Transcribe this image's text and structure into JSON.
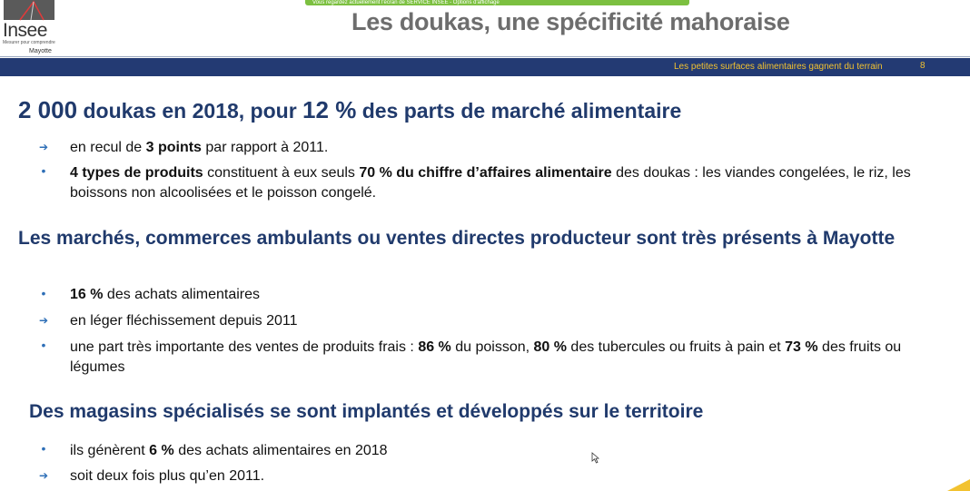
{
  "header": {
    "logo_word": "Insee",
    "logo_tagline": "Mesurer pour comprendre",
    "logo_region": "Mayotte",
    "share_banner": "Vous regardez actuellement l'écran de SERVICE INSEE - Options d'affichage",
    "title": "Les doukas, une spécificité mahoraise",
    "bar_subtitle": "Les petites surfaces alimentaires gagnent du terrain",
    "page_number": "8"
  },
  "sections": [
    {
      "heading_parts": [
        "2 000",
        " doukas en 2018, pour ",
        "12 %",
        " des parts de marché alimentaire"
      ],
      "items": [
        {
          "marker": "arrow",
          "parts": [
            {
              "t": "en recul de "
            },
            {
              "t": "3 points",
              "b": true
            },
            {
              "t": " par rapport à 2011."
            }
          ]
        },
        {
          "marker": "dot",
          "parts": [
            {
              "t": "4 types de produits",
              "b": true
            },
            {
              "t": " constituent à eux seuls "
            },
            {
              "t": "70 % du chiffre d’affaires alimentaire",
              "b": true
            },
            {
              "t": " des doukas : les viandes congelées, le riz, les boissons non alcoolisées et le poisson congelé."
            }
          ]
        }
      ]
    },
    {
      "heading": "Les marchés, commerces ambulants ou ventes directes producteur sont très présents à Mayotte",
      "items": [
        {
          "marker": "dot",
          "parts": [
            {
              "t": "16 %",
              "b": true
            },
            {
              "t": " des achats alimentaires"
            }
          ]
        },
        {
          "marker": "arrow",
          "parts": [
            {
              "t": "en léger fléchissement depuis 2011"
            }
          ]
        },
        {
          "marker": "dot",
          "parts": [
            {
              "t": "une part très importante des ventes de produits frais : "
            },
            {
              "t": "86 %",
              "b": true
            },
            {
              "t": " du poisson, "
            },
            {
              "t": "80 %",
              "b": true
            },
            {
              "t": " des tubercules ou fruits à pain et "
            },
            {
              "t": "73 %",
              "b": true
            },
            {
              "t": " des fruits ou légumes"
            }
          ]
        }
      ]
    },
    {
      "heading": "Des magasins spécialisés se sont implantés et développés sur le territoire",
      "items": [
        {
          "marker": "dot",
          "parts": [
            {
              "t": "ils génèrent "
            },
            {
              "t": "6 %",
              "b": true
            },
            {
              "t": " des achats alimentaires en 2018"
            }
          ]
        },
        {
          "marker": "arrow",
          "parts": [
            {
              "t": "soit deux fois plus qu’en 2011."
            }
          ]
        }
      ]
    }
  ],
  "icons": {
    "marker_arrow": "arrow-right-icon",
    "marker_dot": "bullet-dot-icon",
    "cursor": "mouse-cursor-icon"
  },
  "colors": {
    "bar": "#233a73",
    "heading": "#203a6c",
    "bar_text": "#f2c230",
    "marker": "#2e6fb7",
    "title": "#6d6d6d"
  }
}
